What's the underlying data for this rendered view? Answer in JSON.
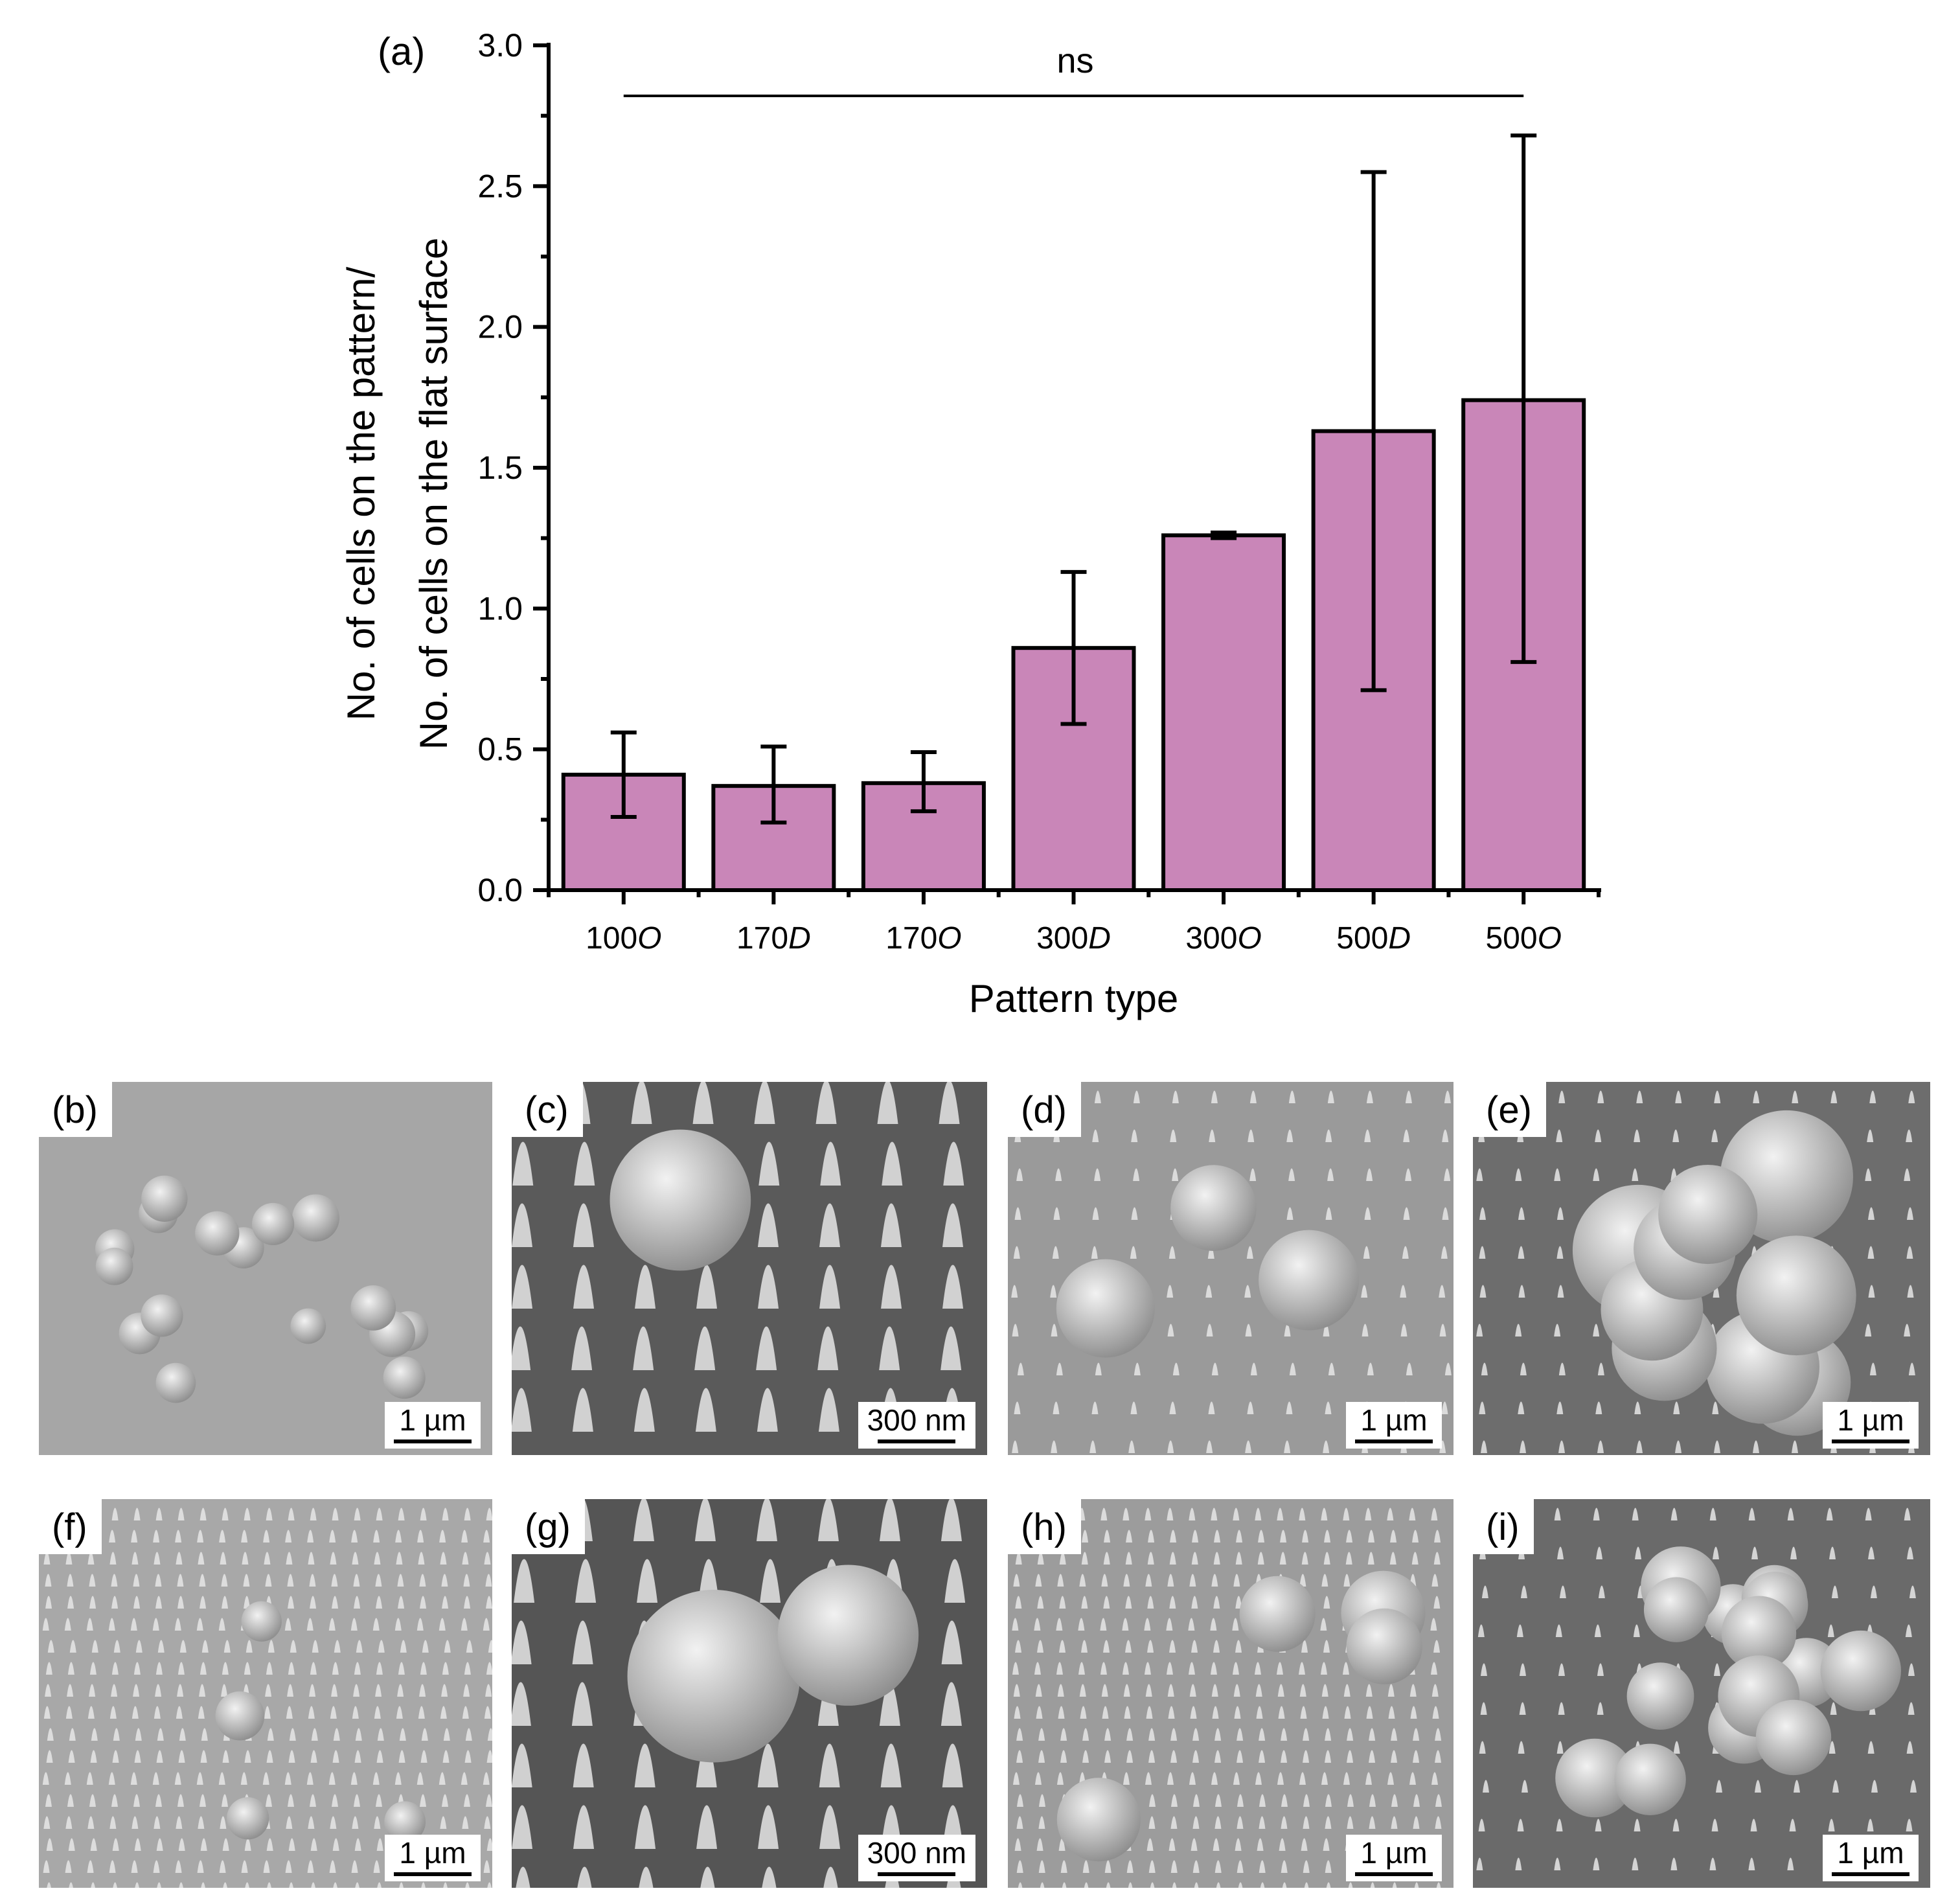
{
  "chart_data": {
    "panel_label": "(a)",
    "type": "bar",
    "categories": [
      {
        "num": "100",
        "suffix": "O"
      },
      {
        "num": "170",
        "suffix": "D"
      },
      {
        "num": "170",
        "suffix": "O"
      },
      {
        "num": "300",
        "suffix": "D"
      },
      {
        "num": "300",
        "suffix": "O"
      },
      {
        "num": "500",
        "suffix": "D"
      },
      {
        "num": "500",
        "suffix": "O"
      }
    ],
    "values": [
      0.41,
      0.37,
      0.38,
      0.86,
      1.26,
      1.63,
      1.74
    ],
    "error_low": [
      0.26,
      0.24,
      0.28,
      0.59,
      1.25,
      0.71,
      0.81
    ],
    "error_high": [
      0.56,
      0.51,
      0.49,
      1.13,
      1.27,
      2.55,
      2.68
    ],
    "xlabel": "Pattern type",
    "ylabel_line1": "No. of cells on the pattern/",
    "ylabel_line2": "No. of cells on the flat surface",
    "ylim": [
      0,
      3.0
    ],
    "yticks": [
      "0.0",
      "0.5",
      "1.0",
      "1.5",
      "2.0",
      "2.5",
      "3.0"
    ],
    "significance": {
      "label": "ns",
      "from_category": 0,
      "to_category": 6
    },
    "bar_color": "#c986b8"
  },
  "panels": [
    {
      "id": "b",
      "label": "(b)",
      "scale": "1 µm"
    },
    {
      "id": "c",
      "label": "(c)",
      "scale": "300 nm"
    },
    {
      "id": "d",
      "label": "(d)",
      "scale": "1 µm"
    },
    {
      "id": "e",
      "label": "(e)",
      "scale": "1 µm"
    },
    {
      "id": "f",
      "label": "(f)",
      "scale": "1 µm"
    },
    {
      "id": "g",
      "label": "(g)",
      "scale": "300 nm"
    },
    {
      "id": "h",
      "label": "(h)",
      "scale": "1 µm"
    },
    {
      "id": "i",
      "label": "(i)",
      "scale": "1 µm"
    }
  ]
}
